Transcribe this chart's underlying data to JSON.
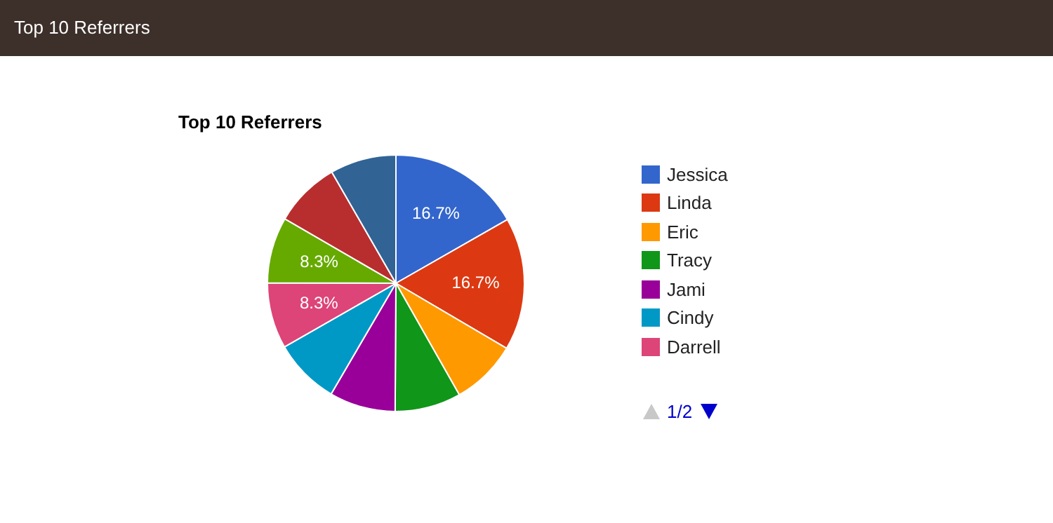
{
  "chart_data": {
    "type": "pie",
    "title": "Top 10 Referrers",
    "annotations": [
      "Top 10 Referrers",
      "1/2"
    ],
    "categories": [
      "Jessica",
      "Linda",
      "Eric",
      "Tracy",
      "Jami",
      "Cindy",
      "Darrell",
      null,
      null,
      null
    ],
    "values": [
      16.7,
      16.7,
      8.3,
      8.3,
      8.3,
      8.3,
      8.3,
      8.3,
      8.3,
      8.3
    ],
    "colors": [
      "#3366cc",
      "#dc3912",
      "#ff9900",
      "#109618",
      "#990099",
      "#0099c6",
      "#dd4477",
      "#66aa00",
      "#b82e2e",
      "#316395"
    ],
    "value_labels": [
      "16.7%",
      "16.7%",
      null,
      null,
      null,
      null,
      "8.3%",
      "8.3%",
      null,
      null
    ],
    "legend": "right"
  }
}
